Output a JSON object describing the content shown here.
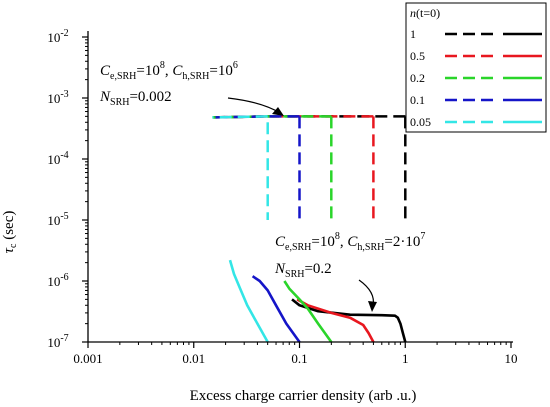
{
  "chart_data": {
    "type": "line",
    "x_scale": "log",
    "y_scale": "log",
    "xlim": [
      0.001,
      10
    ],
    "ylim": [
      1e-07,
      0.01
    ],
    "xlabel": "Excess charge carrier density (arb .u.)",
    "ylabel": "τ",
    "ylabel_sub": "c",
    "ylabel_unit": "(sec)",
    "x_ticks": [
      {
        "value": 0.001,
        "label": "0.001"
      },
      {
        "value": 0.01,
        "label": "0.01"
      },
      {
        "value": 0.1,
        "label": "0.1"
      },
      {
        "value": 1,
        "label": "1"
      },
      {
        "value": 10,
        "label": "10"
      }
    ],
    "y_ticks": [
      {
        "value": 1e-07,
        "base": "10",
        "exp": "-7"
      },
      {
        "value": 1e-06,
        "base": "10",
        "exp": "-6"
      },
      {
        "value": 1e-05,
        "base": "10",
        "exp": "-5"
      },
      {
        "value": 0.0001,
        "base": "10",
        "exp": "-4"
      },
      {
        "value": 0.001,
        "base": "10",
        "exp": "-3"
      },
      {
        "value": 0.01,
        "base": "10",
        "exp": "-2"
      }
    ],
    "grid": false,
    "legend": {
      "placement": "top-right",
      "title_main": "n",
      "title_rest": "(t=0)",
      "entries": [
        {
          "label": "1",
          "color": "#000000"
        },
        {
          "label": "0.5",
          "color": "#e8171f"
        },
        {
          "label": "0.2",
          "color": "#2ad52a"
        },
        {
          "label": "0.1",
          "color": "#1515c8"
        },
        {
          "label": "0.05",
          "color": "#33e6e6"
        }
      ]
    },
    "series": [
      {
        "n0": "1",
        "group": "SRH N=0.002",
        "style": "dashed",
        "color": "#000000",
        "points": [
          [
            1,
            0.0005
          ],
          [
            0.5,
            0.0005
          ],
          [
            0.2,
            0.0005
          ],
          [
            0.1,
            0.0005
          ],
          [
            0.05,
            0.0005
          ],
          [
            0.015,
            0.00048
          ]
        ]
      },
      {
        "n0": "0.5",
        "group": "SRH N=0.002",
        "style": "dashed",
        "color": "#e8171f",
        "points": [
          [
            0.5,
            0.0005
          ],
          [
            0.2,
            0.0005
          ],
          [
            0.1,
            0.0005
          ],
          [
            0.05,
            0.0005
          ],
          [
            0.015,
            0.00048
          ]
        ]
      },
      {
        "n0": "0.2",
        "group": "SRH N=0.002",
        "style": "dashed",
        "color": "#2ad52a",
        "points": [
          [
            0.2,
            0.0005
          ],
          [
            0.1,
            0.0005
          ],
          [
            0.05,
            0.0005
          ],
          [
            0.015,
            0.00048
          ]
        ]
      },
      {
        "n0": "0.1",
        "group": "SRH N=0.002",
        "style": "dashed",
        "color": "#1515c8",
        "points": [
          [
            0.1,
            0.0005
          ],
          [
            0.05,
            0.0005
          ],
          [
            0.015,
            0.00048
          ]
        ]
      },
      {
        "n0": "0.05",
        "group": "SRH N=0.002",
        "style": "dashed",
        "color": "#33e6e6",
        "points": [
          [
            0.05,
            0.0005
          ],
          [
            0.015,
            0.00048
          ]
        ]
      },
      {
        "n0": "1",
        "group": "SRH N=0.002 drop",
        "style": "dashed",
        "color": "#000000",
        "points": [
          [
            1,
            0.0005
          ],
          [
            1,
            1e-05
          ]
        ]
      },
      {
        "n0": "0.5",
        "group": "SRH N=0.002 drop",
        "style": "dashed",
        "color": "#e8171f",
        "points": [
          [
            0.5,
            0.0005
          ],
          [
            0.5,
            1e-05
          ]
        ]
      },
      {
        "n0": "0.2",
        "group": "SRH N=0.002 drop",
        "style": "dashed",
        "color": "#2ad52a",
        "points": [
          [
            0.2,
            0.0005
          ],
          [
            0.2,
            1e-05
          ]
        ]
      },
      {
        "n0": "0.1",
        "group": "SRH N=0.002 drop",
        "style": "dashed",
        "color": "#1515c8",
        "points": [
          [
            0.1,
            0.0005
          ],
          [
            0.1,
            1e-05
          ]
        ]
      },
      {
        "n0": "0.05",
        "group": "SRH N=0.002 drop",
        "style": "dashed",
        "color": "#33e6e6",
        "points": [
          [
            0.05,
            0.0004
          ],
          [
            0.05,
            1e-05
          ]
        ]
      },
      {
        "n0": "1",
        "group": "SRH N=0.2",
        "style": "solid",
        "color": "#000000",
        "points": [
          [
            1,
            1e-07
          ],
          [
            0.95,
            1.4e-07
          ],
          [
            0.9,
            2e-07
          ],
          [
            0.85,
            2.5e-07
          ],
          [
            0.8,
            2.7e-07
          ],
          [
            0.6,
            2.75e-07
          ],
          [
            0.3,
            2.8e-07
          ],
          [
            0.15,
            3.2e-07
          ],
          [
            0.1,
            4e-07
          ],
          [
            0.085,
            5e-07
          ]
        ]
      },
      {
        "n0": "0.5",
        "group": "SRH N=0.2",
        "style": "solid",
        "color": "#e8171f",
        "points": [
          [
            0.5,
            1e-07
          ],
          [
            0.45,
            1.4e-07
          ],
          [
            0.4,
            1.9e-07
          ],
          [
            0.3,
            2.5e-07
          ],
          [
            0.2,
            3e-07
          ],
          [
            0.12,
            4e-07
          ],
          [
            0.095,
            5e-07
          ]
        ]
      },
      {
        "n0": "0.2",
        "group": "SRH N=0.2",
        "style": "solid",
        "color": "#2ad52a",
        "points": [
          [
            0.2,
            1e-07
          ],
          [
            0.15,
            2e-07
          ],
          [
            0.12,
            3.5e-07
          ],
          [
            0.1,
            5e-07
          ],
          [
            0.08,
            7.5e-07
          ],
          [
            0.072,
            1e-06
          ]
        ]
      },
      {
        "n0": "0.1",
        "group": "SRH N=0.2",
        "style": "solid",
        "color": "#1515c8",
        "points": [
          [
            0.1,
            1e-07
          ],
          [
            0.075,
            2e-07
          ],
          [
            0.06,
            4e-07
          ],
          [
            0.05,
            7e-07
          ],
          [
            0.042,
            1e-06
          ],
          [
            0.036,
            1.2e-06
          ]
        ]
      },
      {
        "n0": "0.05",
        "group": "SRH N=0.2",
        "style": "solid",
        "color": "#33e6e6",
        "points": [
          [
            0.05,
            1e-07
          ],
          [
            0.04,
            2e-07
          ],
          [
            0.032,
            4e-07
          ],
          [
            0.027,
            8e-07
          ],
          [
            0.024,
            1.3e-06
          ],
          [
            0.022,
            2.2e-06
          ]
        ]
      }
    ],
    "annotations": [
      {
        "id": "top",
        "C_e_label": "C",
        "C_e_sub": "e,SRH",
        "C_e_value": "=10",
        "C_e_exp": "8",
        "sep": ", ",
        "C_h_label": "C",
        "C_h_sub": "h,SRH",
        "C_h_value": "=10",
        "C_h_exp": "6",
        "N_label": "N",
        "N_sub": "SRH",
        "N_value": "=0.002",
        "arrow_to": [
          0.095,
          0.0005
        ]
      },
      {
        "id": "bottom",
        "C_e_label": "C",
        "C_e_sub": "e,SRH",
        "C_e_value": "=10",
        "C_e_exp": "8",
        "sep": ", ",
        "C_h_label": "C",
        "C_h_sub": "h,SRH",
        "C_h_value": "=2·10",
        "C_h_exp": "7",
        "N_label": "N",
        "N_sub": "SRH",
        "N_value": "=0.2",
        "arrow_to": [
          0.98,
          2.8e-07
        ]
      }
    ]
  }
}
